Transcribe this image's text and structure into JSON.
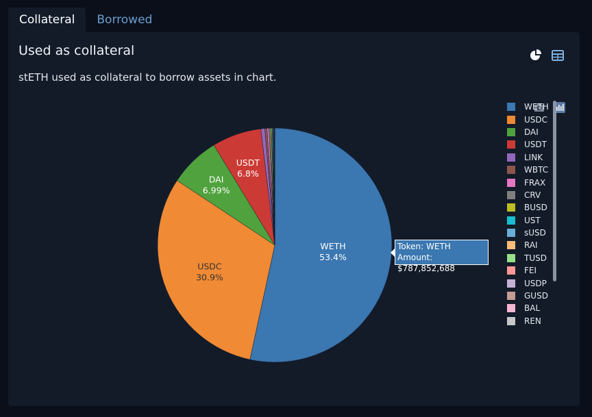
{
  "tabs": [
    {
      "label": "Collateral",
      "active": true
    },
    {
      "label": "Borrowed",
      "active": false
    }
  ],
  "panel": {
    "title": "Used as collateral",
    "description": "stETH used as collateral to borrow assets in chart."
  },
  "toolbar_icons": {
    "view": [
      "pie-chart-icon",
      "table-icon"
    ],
    "modebar": [
      "camera-icon",
      "plotly-logo-icon"
    ]
  },
  "tooltip": {
    "line1": "Token: WETH",
    "line2": "Amount: $787,852,688"
  },
  "chart_data": {
    "type": "pie",
    "categories": [
      "WETH",
      "USDC",
      "DAI",
      "USDT",
      "LINK",
      "WBTC",
      "FRAX",
      "CRV",
      "BUSD",
      "UST",
      "sUSD",
      "RAI",
      "TUSD",
      "FEI",
      "USDP",
      "GUSD",
      "BAL",
      "REN"
    ],
    "values": [
      53.4,
      30.9,
      6.99,
      6.8,
      0.55,
      0.3,
      0.25,
      0.2,
      0.15,
      0.1,
      0.1,
      0.06,
      0.06,
      0.05,
      0.03,
      0.03,
      0.01,
      0.01
    ],
    "slice_labels": [
      {
        "name": "WETH",
        "percent": "53.4%"
      },
      {
        "name": "USDC",
        "percent": "30.9%"
      },
      {
        "name": "DAI",
        "percent": "6.99%"
      },
      {
        "name": "USDT",
        "percent": "6.8%"
      }
    ],
    "colors": [
      "#3b77b0",
      "#f08a34",
      "#4fa23d",
      "#cc3a35",
      "#9467bd",
      "#8c564b",
      "#e377c2",
      "#7f7f7f",
      "#bcbd22",
      "#17becf",
      "#6aaed6",
      "#ffbb78",
      "#98df8a",
      "#ff9896",
      "#c5b0d5",
      "#c49c94",
      "#f7b6d2",
      "#c7c7c7"
    ],
    "legend_position": "right",
    "direction": "clockwise",
    "rotation_start": "top"
  }
}
